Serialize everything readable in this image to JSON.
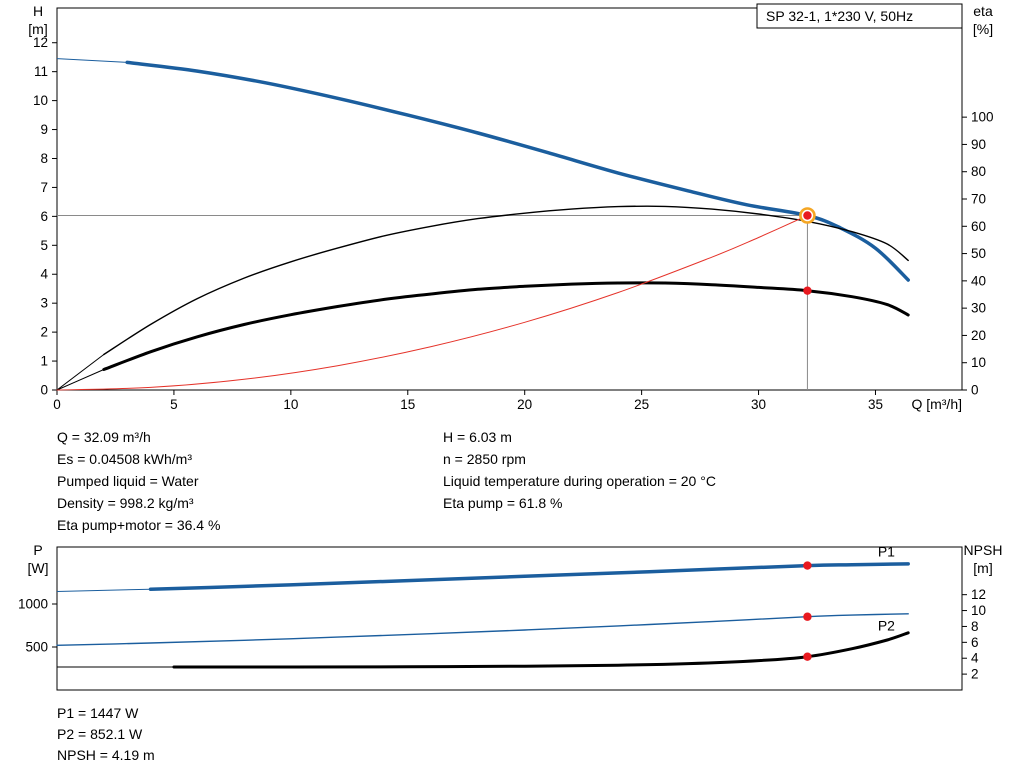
{
  "window": {
    "background": "#ffffff"
  },
  "colors": {
    "curve_blue": "#1b5e9e",
    "curve_black": "#000000",
    "system_red": "#e5332a",
    "duty_dot_red": "#e8191f",
    "duty_ring_orange": "#f5a623",
    "ref_line_gray": "#8a8a8a"
  },
  "results_top": {
    "left": [
      "Q = 32.09 m³/h",
      "Es = 0.04508 kWh/m³",
      "Pumped liquid = Water",
      "Density = 998.2 kg/m³",
      "Eta pump+motor = 36.4 %"
    ],
    "right": [
      "H = 6.03 m",
      "n = 2850 rpm",
      "Liquid temperature during operation = 20 °C",
      "Eta pump = 61.8 %"
    ]
  },
  "results_bottom": [
    "P1 = 1447 W",
    "P2 = 852.1 W",
    "NPSH = 4.19 m"
  ],
  "chart_data": [
    {
      "type": "line",
      "title": "SP 32-1, 1*230 V, 50Hz",
      "x_axis": {
        "label": "Q [m³/h]",
        "min": 0,
        "max": 38.7,
        "ticks": [
          0,
          5,
          10,
          15,
          20,
          25,
          30,
          35
        ]
      },
      "y_left": {
        "label": [
          "H",
          "[m]"
        ],
        "min": 0,
        "max": 13.2,
        "ticks": [
          0,
          1,
          2,
          3,
          4,
          5,
          6,
          7,
          8,
          9,
          10,
          11,
          12
        ]
      },
      "y_right": {
        "label": [
          "eta",
          "[%]"
        ],
        "min": 0,
        "max": 140,
        "ticks": [
          0,
          10,
          20,
          30,
          40,
          50,
          60,
          70,
          80,
          90,
          100
        ]
      },
      "grid": false,
      "series": [
        {
          "name": "head-curve",
          "axis": "left",
          "color": "#1b5e9e",
          "width": 3.5,
          "thin_until": 3,
          "points": [
            [
              0,
              11.45
            ],
            [
              3,
              11.32
            ],
            [
              6,
              11.02
            ],
            [
              9,
              10.6
            ],
            [
              12,
              10.08
            ],
            [
              15,
              9.5
            ],
            [
              18,
              8.88
            ],
            [
              21,
              8.2
            ],
            [
              24,
              7.5
            ],
            [
              27,
              6.88
            ],
            [
              29.5,
              6.4
            ],
            [
              32.09,
              6.03
            ],
            [
              33.5,
              5.6
            ],
            [
              35,
              4.9
            ],
            [
              36.4,
              3.8
            ]
          ]
        },
        {
          "name": "eta-pump-curve",
          "axis": "right",
          "color": "#000000",
          "width": 1.4,
          "thin_until": 2,
          "points": [
            [
              0,
              0
            ],
            [
              2,
              13
            ],
            [
              4,
              24
            ],
            [
              6,
              33.5
            ],
            [
              8,
              41
            ],
            [
              10,
              47
            ],
            [
              12,
              52
            ],
            [
              14,
              56.5
            ],
            [
              16,
              60
            ],
            [
              18,
              62.8
            ],
            [
              20,
              64.8
            ],
            [
              22,
              66.3
            ],
            [
              24,
              67.2
            ],
            [
              26,
              67.3
            ],
            [
              28,
              66.3
            ],
            [
              30,
              64.5
            ],
            [
              32.09,
              61.8
            ],
            [
              34,
              58
            ],
            [
              35.5,
              53.5
            ],
            [
              36.4,
              47.5
            ]
          ]
        },
        {
          "name": "eta-pump-motor-curve",
          "axis": "right",
          "color": "#000000",
          "width": 3,
          "thin_until": 2,
          "points": [
            [
              0,
              0
            ],
            [
              2,
              7.5
            ],
            [
              4,
              14
            ],
            [
              6,
              19.5
            ],
            [
              8,
              24
            ],
            [
              10,
              27.6
            ],
            [
              12,
              30.6
            ],
            [
              14,
              33.2
            ],
            [
              16,
              35.2
            ],
            [
              18,
              36.9
            ],
            [
              20,
              38
            ],
            [
              22,
              38.8
            ],
            [
              24,
              39.2
            ],
            [
              26,
              39.2
            ],
            [
              28,
              38.6
            ],
            [
              30,
              37.6
            ],
            [
              32.09,
              36.4
            ],
            [
              34,
              34.2
            ],
            [
              35.5,
              31.3
            ],
            [
              36.4,
              27.5
            ]
          ]
        },
        {
          "name": "system-curve",
          "axis": "left",
          "color": "#e5332a",
          "width": 1,
          "points": [
            [
              0,
              0
            ],
            [
              4,
              0.09
            ],
            [
              8,
              0.37
            ],
            [
              12,
              0.84
            ],
            [
              16,
              1.5
            ],
            [
              20,
              2.34
            ],
            [
              24,
              3.37
            ],
            [
              28,
              4.59
            ],
            [
              30,
              5.27
            ],
            [
              32.09,
              6.03
            ]
          ]
        }
      ],
      "ref_lines": {
        "duty_q": 32.09,
        "duty_h": 6.03
      },
      "duty_points": [
        {
          "q": 32.09,
          "value": 6.03,
          "axis": "left",
          "style": "ring-dot"
        },
        {
          "q": 32.09,
          "value": 36.4,
          "axis": "right",
          "style": "dot"
        }
      ]
    },
    {
      "type": "line",
      "x_axis": {
        "min": 0,
        "max": 38.7,
        "ticks": []
      },
      "y_left": {
        "label": [
          "P",
          "[W]"
        ],
        "min": 0,
        "max": 1663,
        "ticks": [
          500,
          1000
        ]
      },
      "y_right": {
        "label": [
          "NPSH",
          "[m]"
        ],
        "min": 0,
        "max": 18,
        "ticks": [
          2,
          4,
          6,
          8,
          10,
          12
        ]
      },
      "grid": false,
      "series": [
        {
          "name": "p1-curve",
          "axis": "left",
          "color": "#1b5e9e",
          "width": 3.5,
          "thin_until": 3,
          "label": {
            "text": "P1",
            "q": 35.1,
            "value": 1555
          },
          "points": [
            [
              0,
              1145
            ],
            [
              4,
              1172
            ],
            [
              8,
              1205
            ],
            [
              12,
              1243
            ],
            [
              16,
              1282
            ],
            [
              20,
              1322
            ],
            [
              24,
              1362
            ],
            [
              28,
              1404
            ],
            [
              32.09,
              1447
            ],
            [
              34,
              1457
            ],
            [
              36.4,
              1466
            ]
          ]
        },
        {
          "name": "p2-curve",
          "axis": "left",
          "color": "#1b5e9e",
          "width": 1.4,
          "label": {
            "text": "P2",
            "q": 35.1,
            "value": 690
          },
          "points": [
            [
              0,
              520
            ],
            [
              4,
              546
            ],
            [
              8,
              578
            ],
            [
              12,
              615
            ],
            [
              16,
              655
            ],
            [
              20,
              698
            ],
            [
              24,
              745
            ],
            [
              28,
              796
            ],
            [
              32.09,
              852
            ],
            [
              34,
              871
            ],
            [
              36.4,
              886
            ]
          ]
        },
        {
          "name": "npsh-curve",
          "axis": "right",
          "color": "#000000",
          "width": 3,
          "thin_until": 3,
          "points": [
            [
              0,
              2.9
            ],
            [
              5,
              2.9
            ],
            [
              10,
              2.9
            ],
            [
              15,
              2.92
            ],
            [
              20,
              3.0
            ],
            [
              24,
              3.12
            ],
            [
              27,
              3.32
            ],
            [
              30,
              3.7
            ],
            [
              32.09,
              4.19
            ],
            [
              34,
              5.2
            ],
            [
              35.5,
              6.3
            ],
            [
              36.4,
              7.2
            ]
          ]
        }
      ],
      "duty_points": [
        {
          "q": 32.09,
          "value": 1447,
          "axis": "left",
          "style": "dot"
        },
        {
          "q": 32.09,
          "value": 852,
          "axis": "left",
          "style": "dot"
        },
        {
          "q": 32.09,
          "value": 4.19,
          "axis": "right",
          "style": "dot"
        }
      ]
    }
  ]
}
